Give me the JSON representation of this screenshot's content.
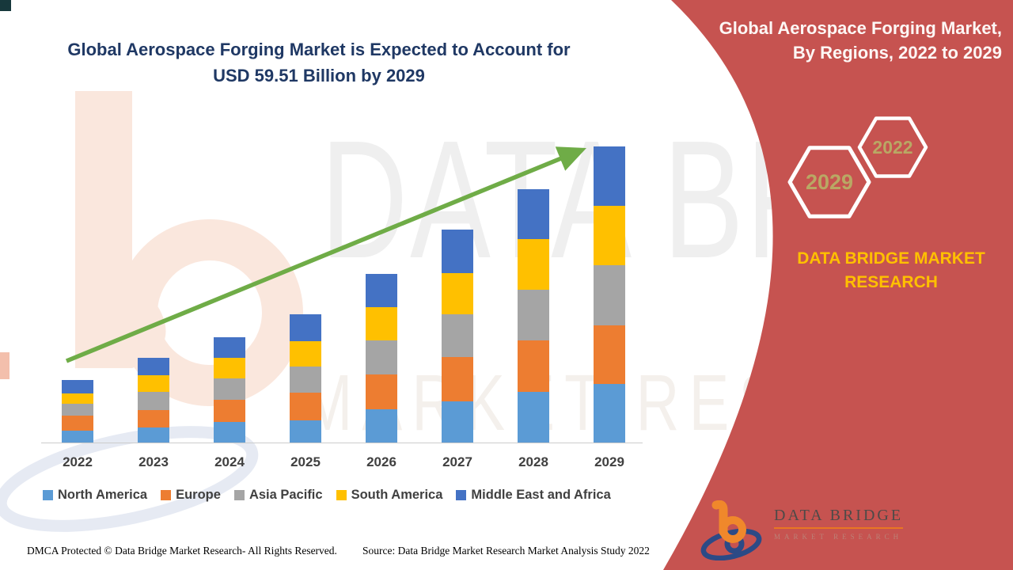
{
  "title": {
    "line1": "Global Aerospace Forging Market is Expected to Account for",
    "line2": "USD 59.51 Billion by 2029"
  },
  "sidebar": {
    "heading_line1": "Global Aerospace Forging Market,",
    "heading_line2": "By Regions, 2022 to 2029",
    "hex_back_year": "2022",
    "hex_front_year": "2029",
    "brand_line1": "DATA BRIDGE MARKET",
    "brand_line2": "RESEARCH",
    "background_color": "#C65350",
    "brand_text_color": "#FFC000",
    "hex_year_color": "#B9A864"
  },
  "logo": {
    "name": "DATA BRIDGE",
    "tagline": "MARKET RESEARCH"
  },
  "watermark": {
    "line1": "DATA BRIDGE",
    "line2": "MARKET RESEARCH"
  },
  "footer": {
    "dmca": "DMCA Protected © Data Bridge Market Research- All Rights Reserved.",
    "source": "Source: Data Bridge Market Research Market Analysis Study 2022"
  },
  "chart_data": {
    "type": "bar",
    "stacked": true,
    "units": "USD Billion",
    "title": "Global Aerospace Forging Market is Expected to Account for USD 59.51 Billion by 2029",
    "categories": [
      "2022",
      "2023",
      "2024",
      "2025",
      "2026",
      "2027",
      "2028",
      "2029"
    ],
    "series": [
      {
        "name": "North America",
        "color": "#5B9BD5",
        "values": [
          2.4,
          3.0,
          4.1,
          4.5,
          6.7,
          8.3,
          10.2,
          11.8
        ]
      },
      {
        "name": "Europe",
        "color": "#ED7D31",
        "values": [
          3.0,
          3.5,
          4.5,
          5.6,
          7.0,
          8.9,
          10.3,
          11.8
        ]
      },
      {
        "name": "Asia Pacific",
        "color": "#A5A5A5",
        "values": [
          2.4,
          3.7,
          4.3,
          5.1,
          6.8,
          8.6,
          10.2,
          12.1
        ]
      },
      {
        "name": "South America",
        "color": "#FFC000",
        "values": [
          2.1,
          3.3,
          4.1,
          5.1,
          6.7,
          8.3,
          10.2,
          11.8
        ]
      },
      {
        "name": "Middle East and Africa",
        "color": "#4472C4",
        "values": [
          2.7,
          3.5,
          4.1,
          5.4,
          6.7,
          8.6,
          10.0,
          12.0
        ]
      }
    ],
    "totals": [
      12.6,
      17.0,
      21.1,
      25.7,
      33.9,
      42.7,
      50.9,
      59.51
    ],
    "highlight_value_2029": "USD 59.51 Billion",
    "ylim": [
      0,
      60
    ],
    "grid": false,
    "legend_position": "bottom",
    "annotations": [
      "upward growth trend arrow from 2022 to 2029"
    ]
  }
}
